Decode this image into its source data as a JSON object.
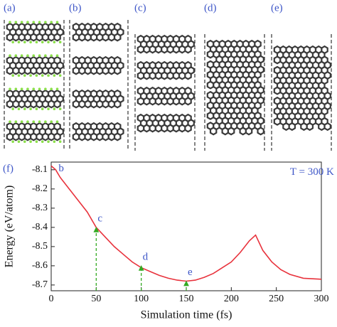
{
  "panels": [
    "(a)",
    "(b)",
    "(c)",
    "(d)",
    "(e)"
  ],
  "chart_data": {
    "type": "line",
    "panel_label": "(f)",
    "xlabel": "Simulation time (fs)",
    "ylabel": "Energy (eV/atom)",
    "x": [
      0,
      5,
      10,
      20,
      30,
      40,
      50,
      60,
      70,
      80,
      90,
      100,
      110,
      120,
      130,
      140,
      150,
      160,
      170,
      180,
      190,
      200,
      210,
      220,
      227,
      235,
      245,
      255,
      265,
      280,
      300
    ],
    "series": [
      {
        "color": "#e8323c",
        "values": [
          -8.08,
          -8.1,
          -8.14,
          -8.2,
          -8.26,
          -8.32,
          -8.4,
          -8.45,
          -8.5,
          -8.54,
          -8.58,
          -8.61,
          -8.63,
          -8.65,
          -8.665,
          -8.675,
          -8.68,
          -8.675,
          -8.66,
          -8.64,
          -8.61,
          -8.58,
          -8.53,
          -8.47,
          -8.44,
          -8.52,
          -8.58,
          -8.62,
          -8.645,
          -8.665,
          -8.67
        ]
      }
    ],
    "xlim": [
      0,
      300
    ],
    "xticks": [
      0,
      50,
      100,
      150,
      200,
      250,
      300
    ],
    "ylim": [
      -8.73,
      -8.06
    ],
    "yticks": [
      -8.7,
      -8.6,
      -8.5,
      -8.4,
      -8.3,
      -8.2,
      -8.1
    ],
    "annotations": [
      {
        "label": "b",
        "x": 5,
        "y": -8.08,
        "arrow": false
      },
      {
        "label": "c",
        "x": 50,
        "y": -8.4,
        "arrow": true
      },
      {
        "label": "d",
        "x": 100,
        "y": -8.6,
        "arrow": true
      },
      {
        "label": "e",
        "x": 150,
        "y": -8.68,
        "arrow": true
      },
      {
        "label": "T = 300 K",
        "x": 262,
        "y": -8.1,
        "arrow": false
      }
    ],
    "arrow_color": "#33aa22"
  }
}
